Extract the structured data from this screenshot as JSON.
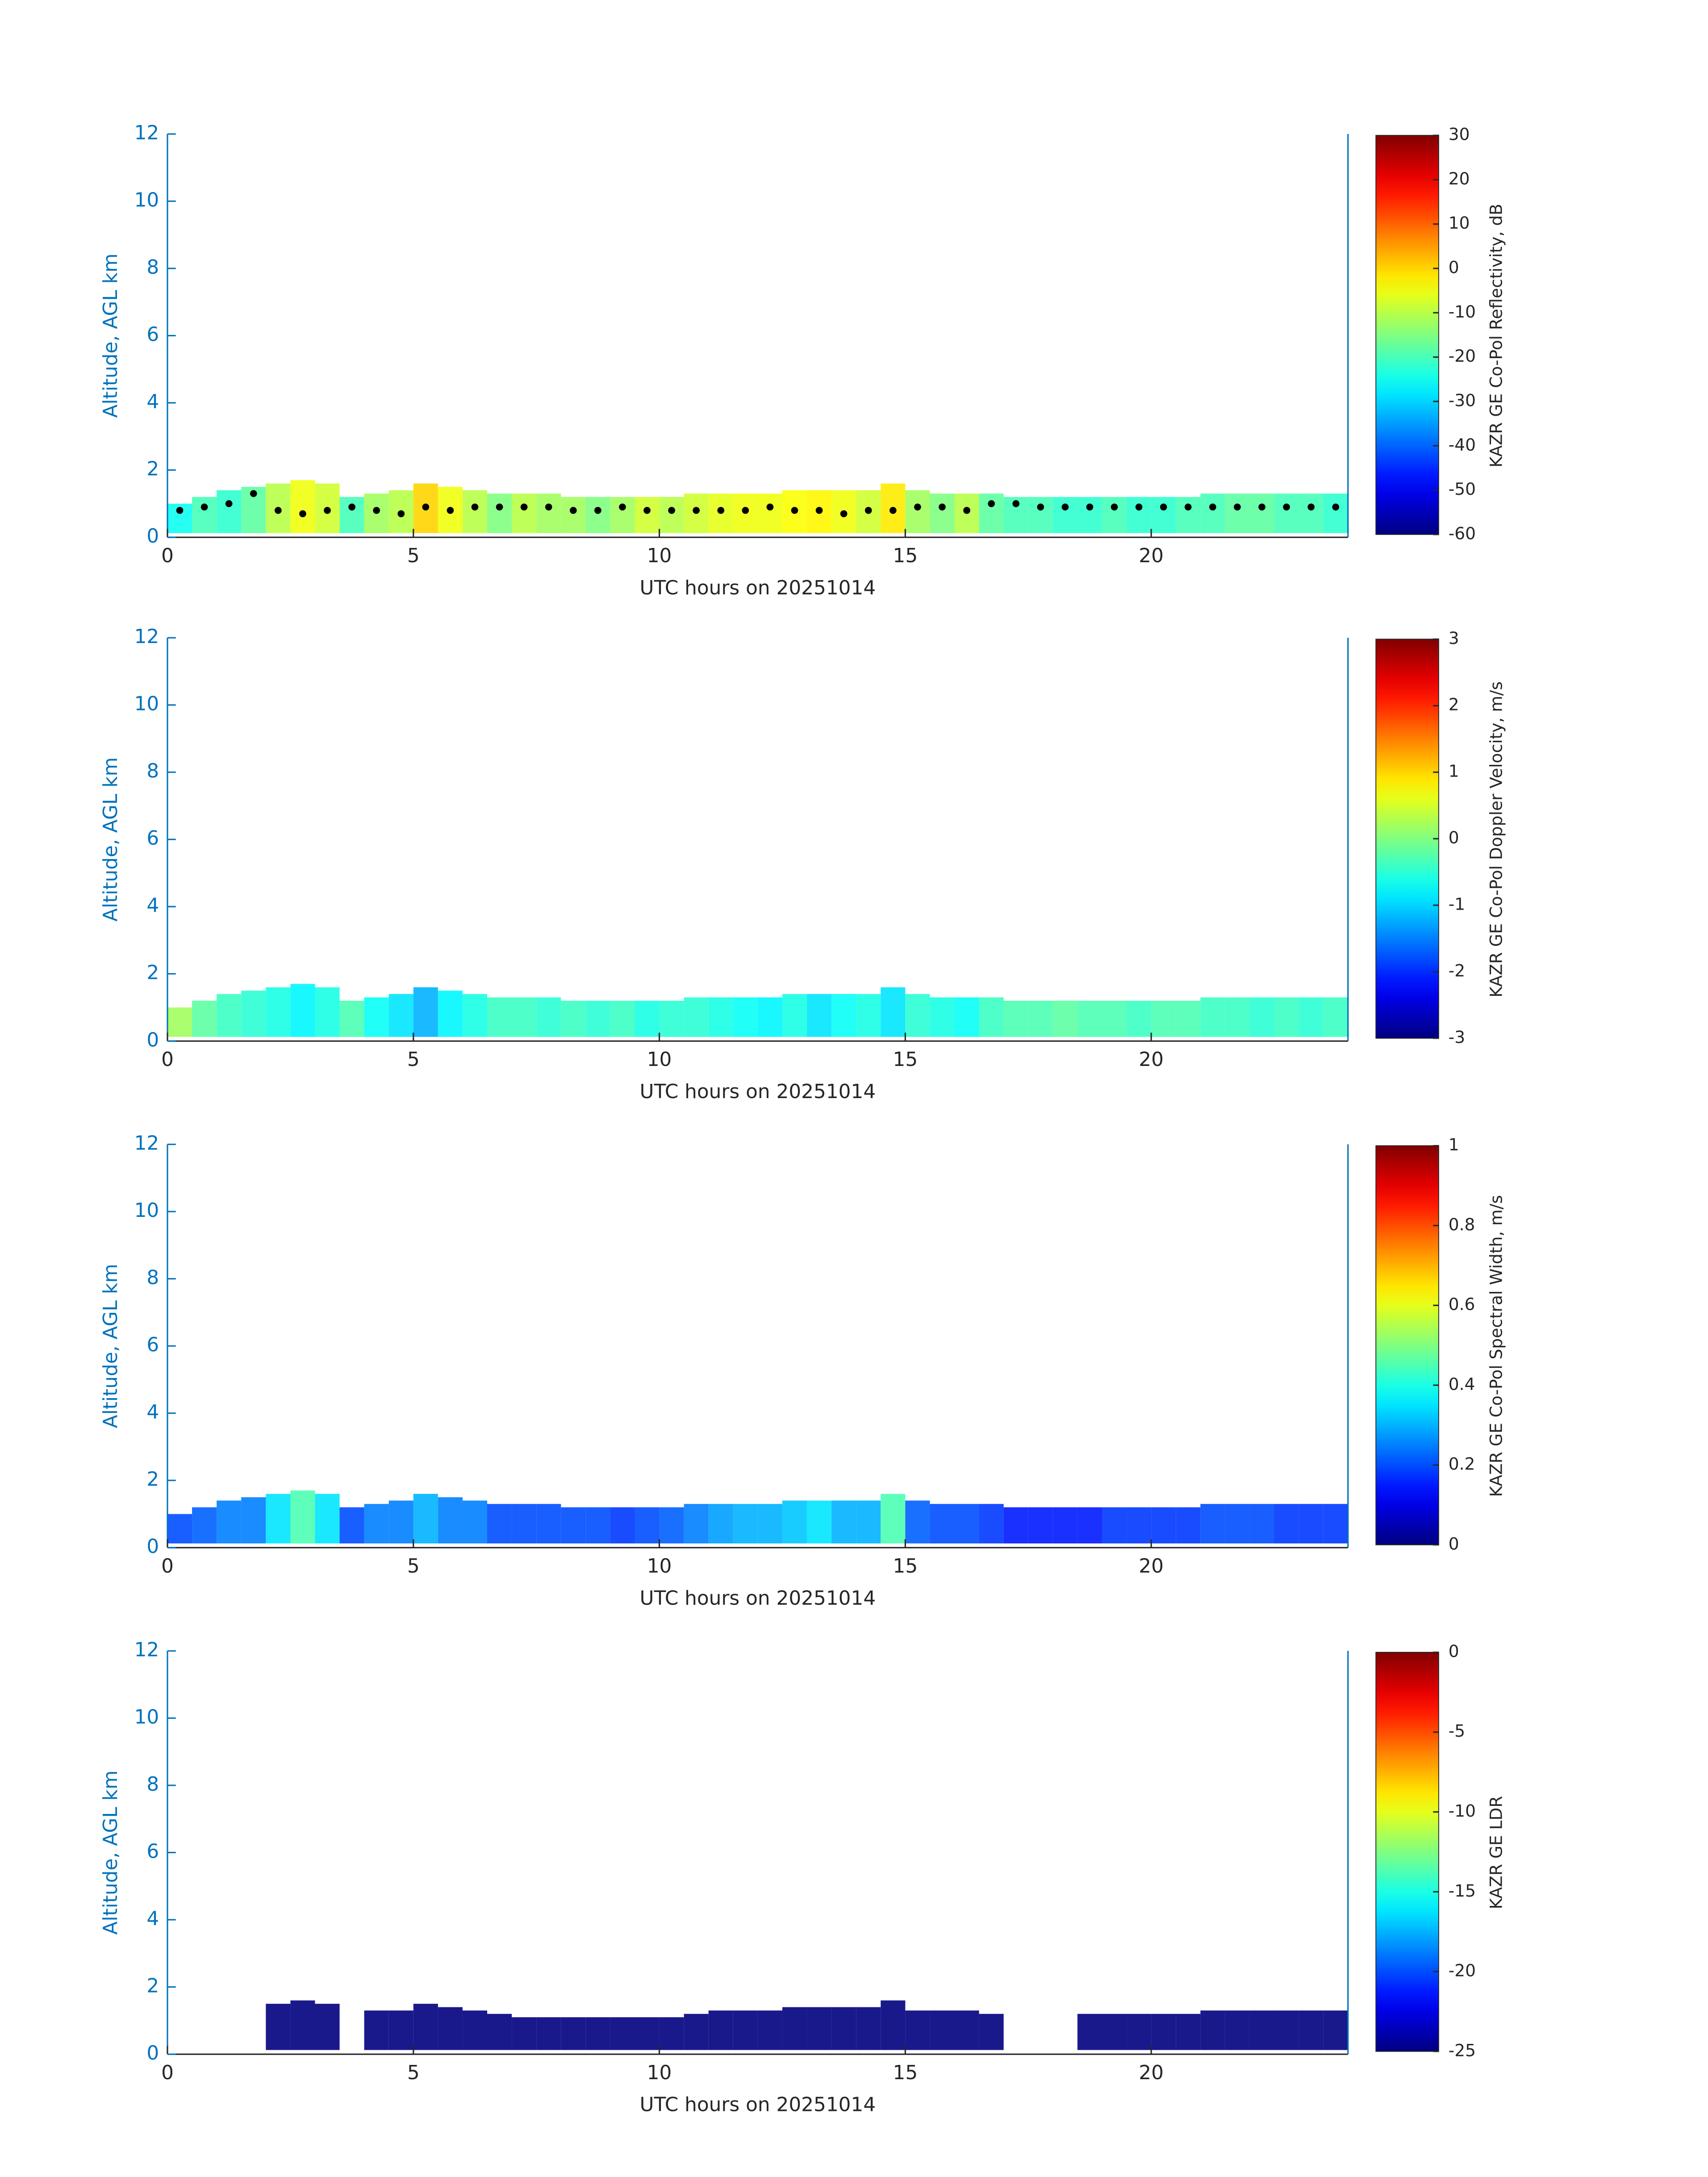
{
  "chart_data": [
    {
      "type": "heatmap",
      "xlabel": "UTC hours on 20251014",
      "ylabel": "Altitude, AGL km",
      "clabel": "KAZR GE Co-Pol Reflectivity, dB",
      "xlim": [
        0,
        24
      ],
      "ylim": [
        0,
        12
      ],
      "xticks": [
        0,
        5,
        10,
        15,
        20
      ],
      "yticks": [
        0,
        2,
        4,
        6,
        8,
        10,
        12
      ],
      "clim": [
        -60,
        30
      ],
      "cticks": [
        -60,
        -50,
        -40,
        -30,
        -20,
        -10,
        0,
        10,
        20,
        30
      ],
      "x": [
        0.25,
        0.75,
        1.25,
        1.75,
        2.25,
        2.75,
        3.25,
        3.75,
        4.25,
        4.75,
        5.25,
        5.75,
        6.25,
        6.75,
        7.25,
        7.75,
        8.25,
        8.75,
        9.25,
        9.75,
        10.25,
        10.75,
        11.25,
        11.75,
        12.25,
        12.75,
        13.25,
        13.75,
        14.25,
        14.75,
        15.25,
        15.75,
        16.25,
        16.75,
        17.25,
        17.75,
        18.25,
        18.75,
        19.25,
        19.75,
        20.25,
        20.75,
        21.25,
        21.75,
        22.25,
        22.75,
        23.25,
        23.75
      ],
      "values": [
        1.0,
        1.2,
        1.4,
        1.5,
        1.6,
        1.7,
        1.6,
        1.2,
        1.3,
        1.4,
        1.6,
        1.5,
        1.4,
        1.3,
        1.3,
        1.3,
        1.2,
        1.2,
        1.2,
        1.2,
        1.2,
        1.3,
        1.3,
        1.3,
        1.3,
        1.4,
        1.4,
        1.4,
        1.4,
        1.6,
        1.4,
        1.3,
        1.3,
        1.3,
        1.2,
        1.2,
        1.2,
        1.2,
        1.2,
        1.2,
        1.2,
        1.2,
        1.3,
        1.3,
        1.3,
        1.3,
        1.3,
        1.3
      ],
      "z": [
        -25,
        -20,
        -22,
        -18,
        -10,
        -5,
        -8,
        -20,
        -12,
        -10,
        0,
        -5,
        -10,
        -15,
        -10,
        -12,
        -12,
        -15,
        -12,
        -8,
        -10,
        -8,
        -6,
        -5,
        -5,
        -4,
        -3,
        -5,
        -8,
        -2,
        -12,
        -15,
        -10,
        -18,
        -20,
        -20,
        -22,
        -22,
        -20,
        -22,
        -22,
        -20,
        -20,
        -18,
        -18,
        -20,
        -20,
        -22
      ],
      "overlay": [
        0.8,
        0.9,
        1.0,
        1.3,
        0.8,
        0.7,
        0.8,
        0.9,
        0.8,
        0.7,
        0.9,
        0.8,
        0.9,
        0.9,
        0.9,
        0.9,
        0.8,
        0.8,
        0.9,
        0.8,
        0.8,
        0.8,
        0.8,
        0.8,
        0.9,
        0.8,
        0.8,
        0.7,
        0.8,
        0.8,
        0.9,
        0.9,
        0.8,
        1.0,
        1.0,
        0.9,
        0.9,
        0.9,
        0.9,
        0.9,
        0.9,
        0.9,
        0.9,
        0.9,
        0.9,
        0.9,
        0.9,
        0.9
      ]
    },
    {
      "type": "heatmap",
      "xlabel": "UTC hours on 20251014",
      "ylabel": "Altitude, AGL km",
      "clabel": "KAZR GE Co-Pol Doppler Velocity, m/s",
      "xlim": [
        0,
        24
      ],
      "ylim": [
        0,
        12
      ],
      "xticks": [
        0,
        5,
        10,
        15,
        20
      ],
      "yticks": [
        0,
        2,
        4,
        6,
        8,
        10,
        12
      ],
      "clim": [
        -3,
        3
      ],
      "cticks": [
        -3,
        -2,
        -1,
        0,
        1,
        2,
        3
      ],
      "x": [
        0.25,
        0.75,
        1.25,
        1.75,
        2.25,
        2.75,
        3.25,
        3.75,
        4.25,
        4.75,
        5.25,
        5.75,
        6.25,
        6.75,
        7.25,
        7.75,
        8.25,
        8.75,
        9.25,
        9.75,
        10.25,
        10.75,
        11.25,
        11.75,
        12.25,
        12.75,
        13.25,
        13.75,
        14.25,
        14.75,
        15.25,
        15.75,
        16.25,
        16.75,
        17.25,
        17.75,
        18.25,
        18.75,
        19.25,
        19.75,
        20.25,
        20.75,
        21.25,
        21.75,
        22.25,
        22.75,
        23.25,
        23.75
      ],
      "values": [
        1.0,
        1.2,
        1.4,
        1.5,
        1.6,
        1.7,
        1.6,
        1.2,
        1.3,
        1.4,
        1.6,
        1.5,
        1.4,
        1.3,
        1.3,
        1.3,
        1.2,
        1.2,
        1.2,
        1.2,
        1.2,
        1.3,
        1.3,
        1.3,
        1.3,
        1.4,
        1.4,
        1.4,
        1.4,
        1.6,
        1.4,
        1.3,
        1.3,
        1.3,
        1.2,
        1.2,
        1.2,
        1.2,
        1.2,
        1.2,
        1.2,
        1.2,
        1.3,
        1.3,
        1.3,
        1.3,
        1.3,
        1.3
      ],
      "z": [
        0.2,
        -0.2,
        -0.4,
        -0.5,
        -0.6,
        -0.8,
        -0.6,
        -0.3,
        -0.7,
        -0.9,
        -1.2,
        -0.8,
        -0.6,
        -0.4,
        -0.4,
        -0.5,
        -0.4,
        -0.5,
        -0.4,
        -0.6,
        -0.5,
        -0.5,
        -0.6,
        -0.7,
        -0.8,
        -0.6,
        -0.9,
        -0.7,
        -0.6,
        -0.9,
        -0.5,
        -0.6,
        -0.7,
        -0.4,
        -0.3,
        -0.3,
        -0.2,
        -0.3,
        -0.3,
        -0.4,
        -0.3,
        -0.3,
        -0.4,
        -0.4,
        -0.5,
        -0.4,
        -0.5,
        -0.4
      ]
    },
    {
      "type": "heatmap",
      "xlabel": "UTC hours on 20251014",
      "ylabel": "Altitude, AGL km",
      "clabel": "KAZR GE Co-Pol Spectral Width, m/s",
      "xlim": [
        0,
        24
      ],
      "ylim": [
        0,
        12
      ],
      "xticks": [
        0,
        5,
        10,
        15,
        20
      ],
      "yticks": [
        0,
        2,
        4,
        6,
        8,
        10,
        12
      ],
      "clim": [
        0,
        1
      ],
      "cticks": [
        0,
        0.2,
        0.4,
        0.6,
        0.8,
        1
      ],
      "x": [
        0.25,
        0.75,
        1.25,
        1.75,
        2.25,
        2.75,
        3.25,
        3.75,
        4.25,
        4.75,
        5.25,
        5.75,
        6.25,
        6.75,
        7.25,
        7.75,
        8.25,
        8.75,
        9.25,
        9.75,
        10.25,
        10.75,
        11.25,
        11.75,
        12.25,
        12.75,
        13.25,
        13.75,
        14.25,
        14.75,
        15.25,
        15.75,
        16.25,
        16.75,
        17.25,
        17.75,
        18.25,
        18.75,
        19.25,
        19.75,
        20.25,
        20.75,
        21.25,
        21.75,
        22.25,
        22.75,
        23.25,
        23.75
      ],
      "values": [
        1.0,
        1.2,
        1.4,
        1.5,
        1.6,
        1.7,
        1.6,
        1.2,
        1.3,
        1.4,
        1.6,
        1.5,
        1.4,
        1.3,
        1.3,
        1.3,
        1.2,
        1.2,
        1.2,
        1.2,
        1.2,
        1.3,
        1.3,
        1.3,
        1.3,
        1.4,
        1.4,
        1.4,
        1.4,
        1.6,
        1.4,
        1.3,
        1.3,
        1.3,
        1.2,
        1.2,
        1.2,
        1.2,
        1.2,
        1.2,
        1.2,
        1.2,
        1.3,
        1.3,
        1.3,
        1.3,
        1.3,
        1.3
      ],
      "z": [
        0.2,
        0.22,
        0.25,
        0.25,
        0.35,
        0.45,
        0.35,
        0.2,
        0.25,
        0.25,
        0.3,
        0.25,
        0.25,
        0.2,
        0.2,
        0.2,
        0.2,
        0.2,
        0.18,
        0.2,
        0.22,
        0.25,
        0.28,
        0.3,
        0.3,
        0.32,
        0.35,
        0.3,
        0.3,
        0.45,
        0.22,
        0.2,
        0.2,
        0.18,
        0.15,
        0.15,
        0.15,
        0.15,
        0.18,
        0.18,
        0.18,
        0.18,
        0.2,
        0.2,
        0.2,
        0.18,
        0.18,
        0.18
      ]
    },
    {
      "type": "heatmap",
      "xlabel": "UTC hours on 20251014",
      "ylabel": "Altitude, AGL km",
      "clabel": "KAZR GE LDR",
      "xlim": [
        0,
        24
      ],
      "ylim": [
        0,
        12
      ],
      "xticks": [
        0,
        5,
        10,
        15,
        20
      ],
      "yticks": [
        0,
        2,
        4,
        6,
        8,
        10,
        12
      ],
      "clim": [
        -25,
        0
      ],
      "cticks": [
        -25,
        -20,
        -15,
        -10,
        -5,
        0
      ],
      "x": [
        0.25,
        0.75,
        1.25,
        1.75,
        2.25,
        2.75,
        3.25,
        3.75,
        4.25,
        4.75,
        5.25,
        5.75,
        6.25,
        6.75,
        7.25,
        7.75,
        8.25,
        8.75,
        9.25,
        9.75,
        10.25,
        10.75,
        11.25,
        11.75,
        12.25,
        12.75,
        13.25,
        13.75,
        14.25,
        14.75,
        15.25,
        15.75,
        16.25,
        16.75,
        17.25,
        17.75,
        18.25,
        18.75,
        19.25,
        19.75,
        20.25,
        20.75,
        21.25,
        21.75,
        22.25,
        22.75,
        23.25,
        23.75
      ],
      "values": [
        null,
        null,
        null,
        null,
        1.5,
        1.6,
        1.5,
        null,
        1.3,
        1.3,
        1.5,
        1.4,
        1.3,
        1.2,
        1.1,
        1.1,
        1.1,
        1.1,
        1.1,
        1.1,
        1.1,
        1.2,
        1.3,
        1.3,
        1.3,
        1.4,
        1.4,
        1.4,
        1.4,
        1.6,
        1.3,
        1.3,
        1.3,
        1.2,
        null,
        null,
        null,
        1.2,
        1.2,
        1.2,
        1.2,
        1.2,
        1.3,
        1.3,
        1.3,
        1.3,
        1.3,
        1.3
      ],
      "z": [
        null,
        null,
        null,
        null,
        -25,
        -25,
        -25,
        null,
        -25,
        -25,
        -25,
        -25,
        -25,
        -25,
        -25,
        -25,
        -25,
        -25,
        -25,
        -25,
        -25,
        -25,
        -25,
        -25,
        -25,
        -25,
        -25,
        -25,
        -25,
        -25,
        -25,
        -25,
        -25,
        -25,
        null,
        null,
        null,
        -25,
        -25,
        -25,
        -25,
        -25,
        -25,
        -25,
        -25,
        -25,
        -25,
        -25
      ]
    }
  ]
}
